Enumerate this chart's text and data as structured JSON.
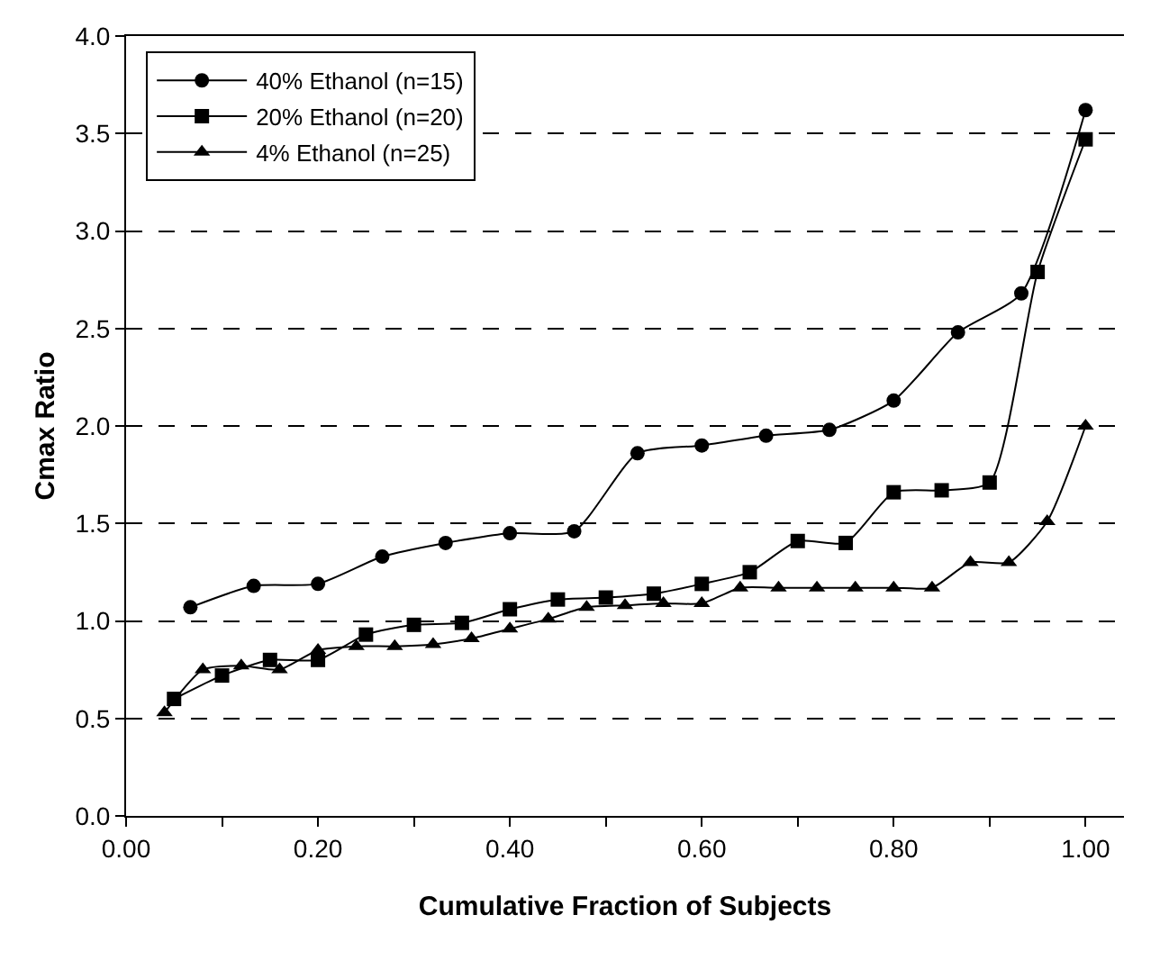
{
  "chart_data": {
    "type": "line",
    "xlabel": "Cumulative Fraction of Subjects",
    "ylabel": "Cmax Ratio",
    "xlim": [
      0,
      1.04
    ],
    "ylim": [
      0,
      4
    ],
    "xticks": [
      {
        "value": 0,
        "label": "0.00"
      },
      {
        "value": 0.1,
        "label": null
      },
      {
        "value": 0.2,
        "label": "0.20"
      },
      {
        "value": 0.3,
        "label": null
      },
      {
        "value": 0.4,
        "label": "0.40"
      },
      {
        "value": 0.5,
        "label": null
      },
      {
        "value": 0.6,
        "label": "0.60"
      },
      {
        "value": 0.7,
        "label": null
      },
      {
        "value": 0.8,
        "label": "0.80"
      },
      {
        "value": 0.9,
        "label": null
      },
      {
        "value": 1,
        "label": "1.00"
      }
    ],
    "yticks": [
      {
        "value": 0,
        "label": "0.0"
      },
      {
        "value": 0.5,
        "label": "0.5"
      },
      {
        "value": 1,
        "label": "1.0"
      },
      {
        "value": 1.5,
        "label": "1.5"
      },
      {
        "value": 2,
        "label": "2.0"
      },
      {
        "value": 2.5,
        "label": "2.5"
      },
      {
        "value": 3,
        "label": "3.0"
      },
      {
        "value": 3.5,
        "label": "3.5"
      },
      {
        "value": 4,
        "label": "4.0"
      }
    ],
    "grid": "y",
    "legend": "top left",
    "line_style": "solid",
    "series": [
      {
        "name": "40% Ethanol (n=15)",
        "color": "#000000",
        "marker": "circle",
        "x": [
          0.067,
          0.133,
          0.2,
          0.267,
          0.333,
          0.4,
          0.467,
          0.533,
          0.6,
          0.667,
          0.733,
          0.8,
          0.867,
          0.933,
          1
        ],
        "values": [
          1.07,
          1.18,
          1.19,
          1.33,
          1.4,
          1.45,
          1.46,
          1.86,
          1.9,
          1.95,
          1.98,
          2.13,
          2.48,
          2.68,
          3.62
        ]
      },
      {
        "name": "20% Ethanol (n=20)",
        "color": "#000000",
        "marker": "square",
        "x": [
          0.05,
          0.1,
          0.15,
          0.2,
          0.25,
          0.3,
          0.35,
          0.4,
          0.45,
          0.5,
          0.55,
          0.6,
          0.65,
          0.7,
          0.75,
          0.8,
          0.85,
          0.9,
          0.95,
          1
        ],
        "values": [
          0.6,
          0.72,
          0.8,
          0.8,
          0.93,
          0.98,
          0.99,
          1.06,
          1.11,
          1.12,
          1.14,
          1.19,
          1.25,
          1.41,
          1.4,
          1.66,
          1.67,
          1.71,
          2.79,
          3.47
        ]
      },
      {
        "name": "4% Ethanol (n=25)",
        "color": "#000000",
        "marker": "triangle",
        "x": [
          0.04,
          0.08,
          0.12,
          0.16,
          0.2,
          0.24,
          0.28,
          0.32,
          0.36,
          0.4,
          0.44,
          0.48,
          0.52,
          0.56,
          0.6,
          0.64,
          0.68,
          0.72,
          0.76,
          0.8,
          0.84,
          0.88,
          0.92,
          0.96,
          1
        ],
        "values": [
          0.53,
          0.75,
          0.77,
          0.75,
          0.85,
          0.87,
          0.87,
          0.88,
          0.91,
          0.96,
          1.01,
          1.07,
          1.08,
          1.09,
          1.09,
          1.17,
          1.17,
          1.17,
          1.17,
          1.17,
          1.17,
          1.3,
          1.3,
          1.51,
          2.0
        ]
      }
    ]
  }
}
